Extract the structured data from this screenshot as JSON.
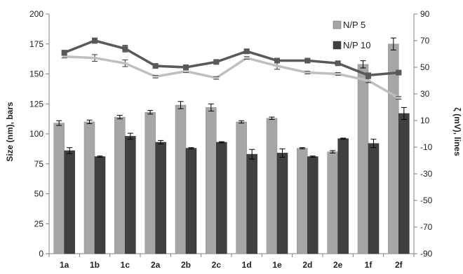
{
  "chart_data": {
    "type": "bar",
    "categories": [
      "1a",
      "1b",
      "1c",
      "2a",
      "2b",
      "2c",
      "1d",
      "1e",
      "2d",
      "2e",
      "1f",
      "2f"
    ],
    "bar_series": [
      {
        "name": "N/P 5",
        "color": "#a6a6a6",
        "values": [
          109,
          110,
          114,
          118,
          124,
          122,
          110,
          113,
          88,
          85,
          158,
          175
        ],
        "errors": [
          2,
          1.5,
          1.5,
          1.5,
          3,
          3,
          1,
          1,
          0.5,
          1,
          3,
          5
        ]
      },
      {
        "name": "N/P 10",
        "color": "#404040",
        "values": [
          86,
          81,
          98,
          93,
          88,
          93,
          83,
          84,
          81,
          96,
          92,
          117
        ],
        "errors": [
          2.5,
          0.5,
          2.5,
          1.5,
          0.5,
          0.5,
          4,
          3.5,
          0.5,
          0.5,
          3.5,
          5
        ]
      }
    ],
    "line_series": [
      {
        "color": "#bfbfbf",
        "values": [
          58,
          57,
          53,
          43,
          47,
          42,
          57,
          51,
          46,
          45,
          40,
          27
        ],
        "errors": [
          1,
          2.5,
          2.5,
          1,
          1,
          1,
          1,
          2.5,
          1,
          1,
          1.5,
          1
        ]
      },
      {
        "color": "#595959",
        "values": [
          61,
          70,
          64,
          51,
          50,
          54,
          62,
          55,
          55,
          53,
          44,
          46
        ],
        "errors": [
          1,
          2,
          2.5,
          1,
          1.5,
          1,
          1.5,
          1.5,
          1,
          1,
          1,
          1
        ]
      }
    ],
    "ylabel": "Size (nm), bars",
    "y2label": "ζ (mV), lines",
    "ylim": [
      0,
      200
    ],
    "yticks": [
      0,
      25,
      50,
      75,
      100,
      125,
      150,
      175,
      200
    ],
    "y2lim": [
      -90,
      90
    ],
    "y2ticks": [
      -90,
      -70,
      -50,
      -30,
      -10,
      10,
      30,
      50,
      70,
      90
    ],
    "legend_position": "top-right",
    "grid": false
  }
}
